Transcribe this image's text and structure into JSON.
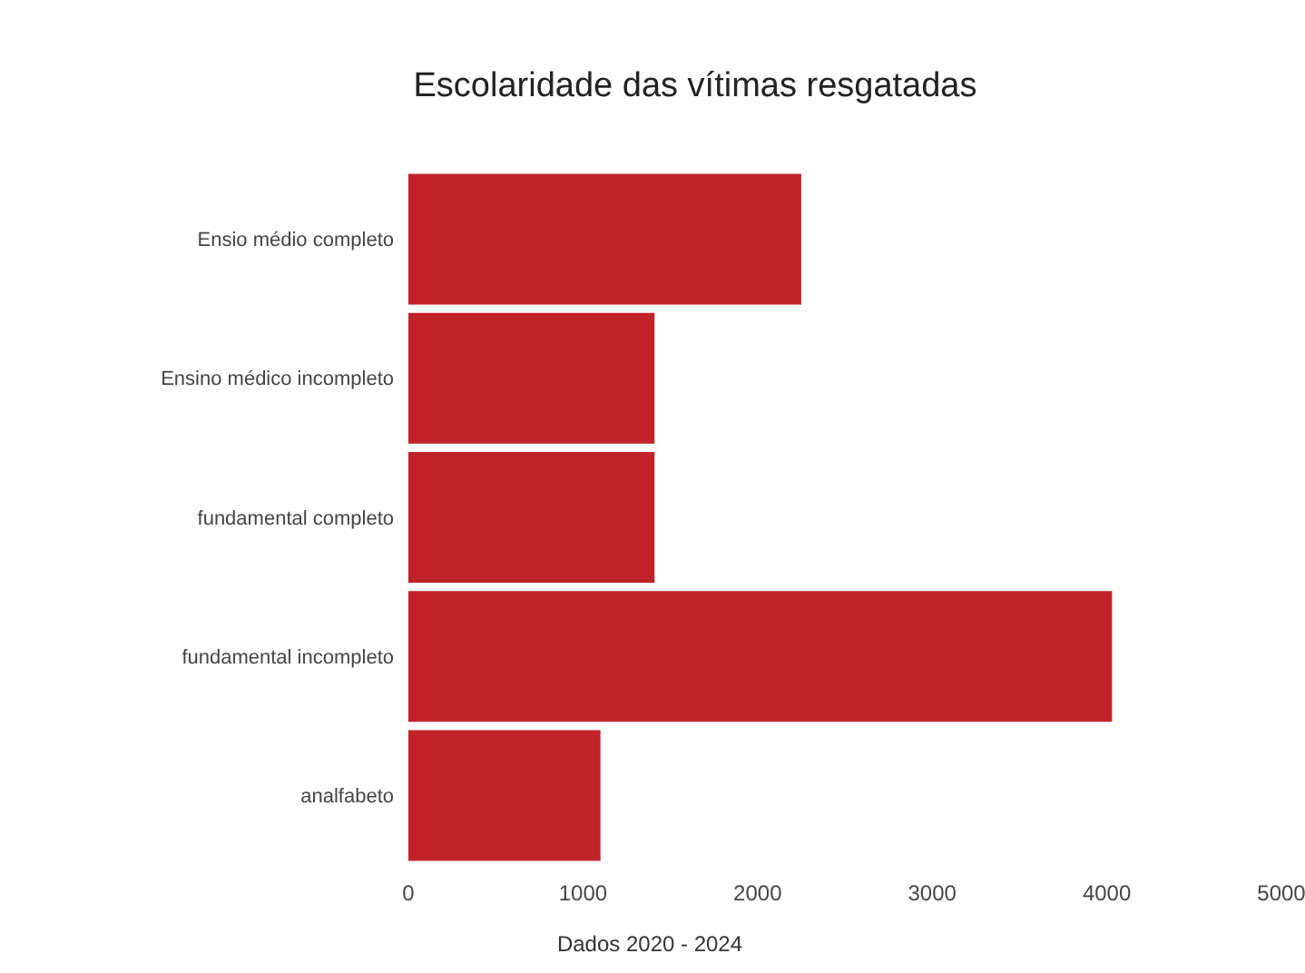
{
  "chart_data": {
    "type": "bar",
    "orientation": "horizontal",
    "title": "Escolaridade das vítimas resgatadas",
    "categories": [
      "Ensio médio completo",
      "Ensino médico incompleto",
      "fundamental completo",
      "fundamental incompleto",
      "analfabeto"
    ],
    "values": [
      2250,
      1410,
      1410,
      4030,
      1100
    ],
    "color": "#c0232a",
    "xlim": [
      0,
      5000
    ],
    "xticks": [
      0,
      1000,
      2000,
      3000,
      4000,
      5000
    ],
    "grid": false,
    "annotations": [
      "Dados 2020 - 2024"
    ]
  }
}
